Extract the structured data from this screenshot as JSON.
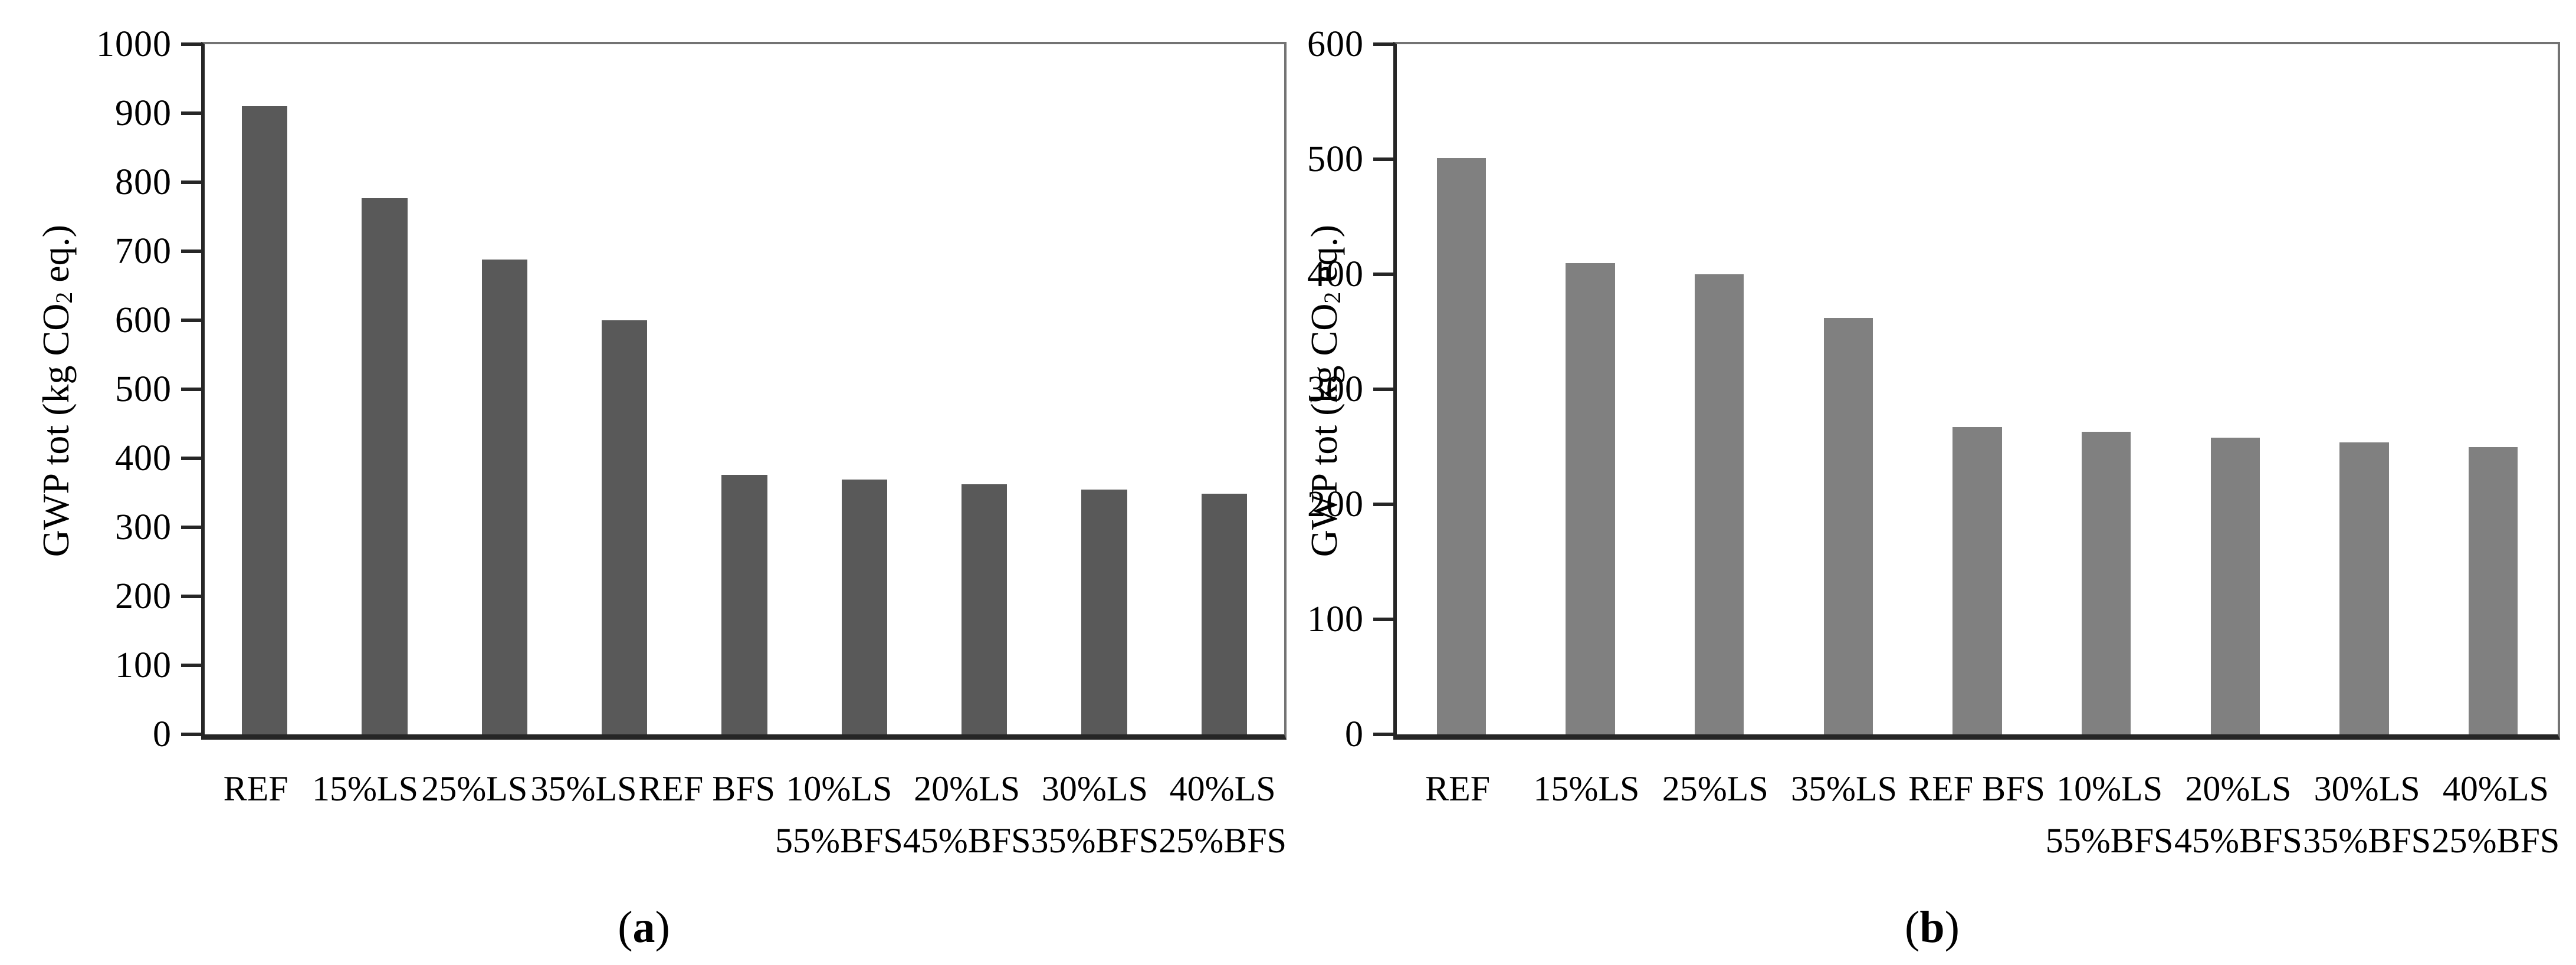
{
  "figure": {
    "background": "#ffffff",
    "axis_color": "#262626",
    "plot_border_color": "#737373"
  },
  "chart_data": [
    {
      "type": "bar",
      "panel": "a",
      "caption": {
        "open": "(",
        "letter": "a",
        "close": ")"
      },
      "ylabel_text": "GWP tot (kg CO2 eq.)",
      "ylabel_parts": {
        "pre": "GWP tot (kg CO",
        "sub": "2",
        "post": " eq.)"
      },
      "xlabel": "",
      "ylim": [
        0,
        1000
      ],
      "yticks": [
        0,
        100,
        200,
        300,
        400,
        500,
        600,
        700,
        800,
        900,
        1000
      ],
      "grid": false,
      "legend": null,
      "bar_color": "#595959",
      "categories": [
        [
          "REF"
        ],
        [
          "15%LS"
        ],
        [
          "25%LS"
        ],
        [
          "35%LS"
        ],
        [
          "REF BFS"
        ],
        [
          "10%LS",
          "55%BFS"
        ],
        [
          "20%LS",
          "45%BFS"
        ],
        [
          "30%LS",
          "35%BFS"
        ],
        [
          "40%LS",
          "25%BFS"
        ]
      ],
      "values": [
        910,
        777,
        688,
        600,
        376,
        369,
        362,
        355,
        349
      ]
    },
    {
      "type": "bar",
      "panel": "b",
      "caption": {
        "open": "(",
        "letter": "b",
        "close": ")"
      },
      "ylabel_text": "GWP tot (kg CO2 eq.)",
      "ylabel_parts": {
        "pre": "GWP tot (kg CO",
        "sub": "2",
        "post": " eq.)"
      },
      "xlabel": "",
      "ylim": [
        0,
        600
      ],
      "yticks": [
        0,
        100,
        200,
        300,
        400,
        500,
        600
      ],
      "grid": false,
      "legend": null,
      "bar_color": "#808080",
      "categories": [
        [
          "REF"
        ],
        [
          "15%LS"
        ],
        [
          "25%LS"
        ],
        [
          "35%LS"
        ],
        [
          "REF BFS"
        ],
        [
          "10%LS",
          "55%BFS"
        ],
        [
          "20%LS",
          "45%BFS"
        ],
        [
          "30%LS",
          "35%BFS"
        ],
        [
          "40%LS",
          "25%BFS"
        ]
      ],
      "values": [
        501,
        410,
        400,
        362,
        267,
        263,
        258,
        254,
        250
      ]
    }
  ]
}
